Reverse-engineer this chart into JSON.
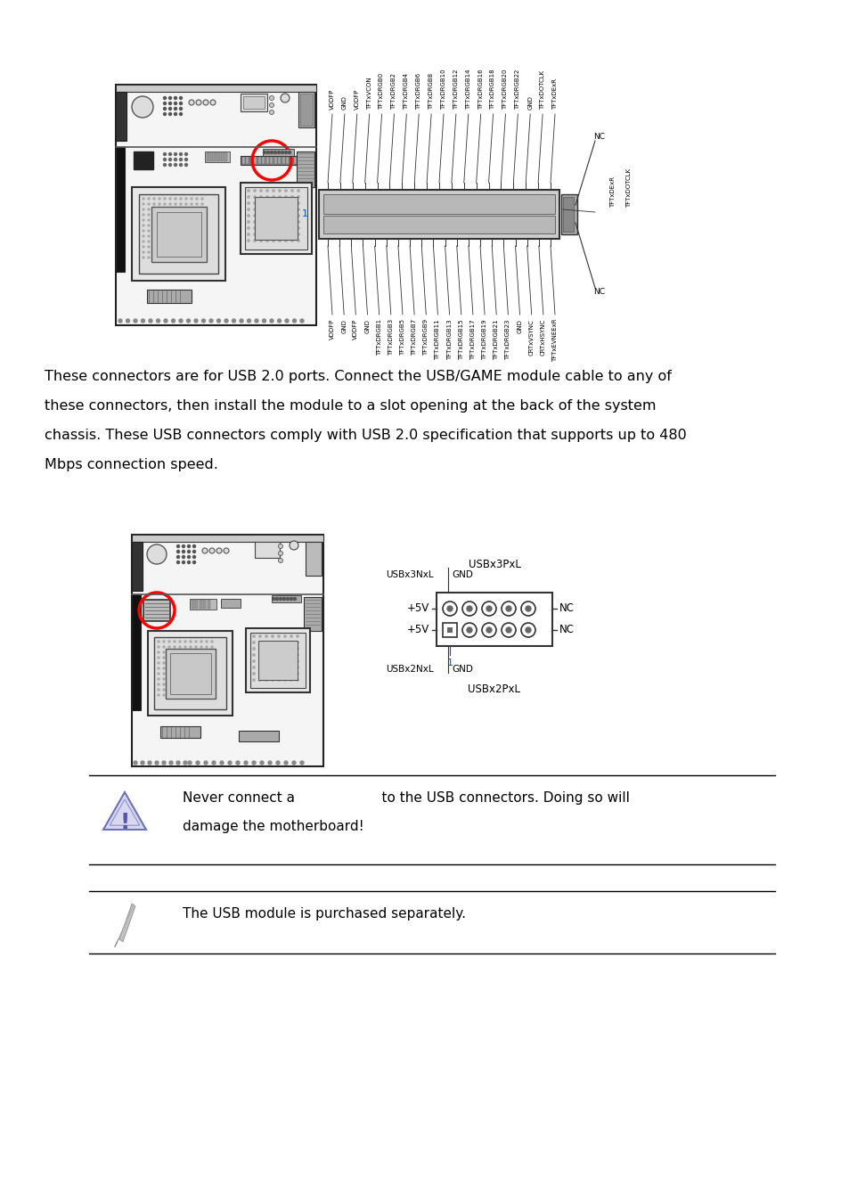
{
  "bg_color": "#ffffff",
  "paragraph_text": "These connectors are for USB 2.0 ports. Connect the USB/GAME module cable to any of\nthese connectors, then install the module to a slot opening at the back of the system\nchassis. These USB connectors comply with USB 2.0 specification that supports up to 480\nMbps connection speed.",
  "warning_line1": "Never connect a                    to the USB connectors. Doing so will",
  "warning_line2": "damage the motherboard!",
  "note_text": "The USB module is purchased separately.",
  "upper_labels": [
    "VDDFP",
    "GND",
    "VDDFP",
    "TFTxVCON",
    "TFTxDRGB0",
    "TFTxDRGB2",
    "TFTxDRGB4",
    "TFTxDRGB6",
    "TFTxDRGB8",
    "TFTxDRGB10",
    "TFTxDRGB12",
    "TFTxDRGB14",
    "TFTxDRGB16",
    "TFTxDRGB18",
    "TFTxDRGB20",
    "TFTxDRGB22",
    "GND",
    "TFTxDOTCLK",
    "TFTxDExR"
  ],
  "lower_labels": [
    "VDDFP",
    "GND",
    "VDDFP",
    "GND",
    "TFTxDRGB1",
    "TFTxDRGB3",
    "TFTxDRGB5",
    "TFTxDRGB7",
    "TFTxDRGB9",
    "TFTxDRGB11",
    "TFTxDRGB13",
    "TFTxDRGB15",
    "TFTxDRGB17",
    "TFTxDRGB19",
    "TFTxDRGB21",
    "TFTxDRGB23",
    "GND",
    "CRTxVSYNC",
    "CRTxHSYNC",
    "TFTxEVNEExR"
  ],
  "usb_top": "USBx3PxL",
  "usb_row1_left": "USBx3NxL",
  "usb_row1_right": "GND",
  "usb_left1": "+5V",
  "usb_left2": "+5V",
  "usb_right1": "NC",
  "usb_right2": "NC",
  "usb_pin1": "1",
  "usb_bot_left": "USBx2NxL",
  "usb_bot_right": "GND",
  "usb_bottom": "USBx2PxL"
}
